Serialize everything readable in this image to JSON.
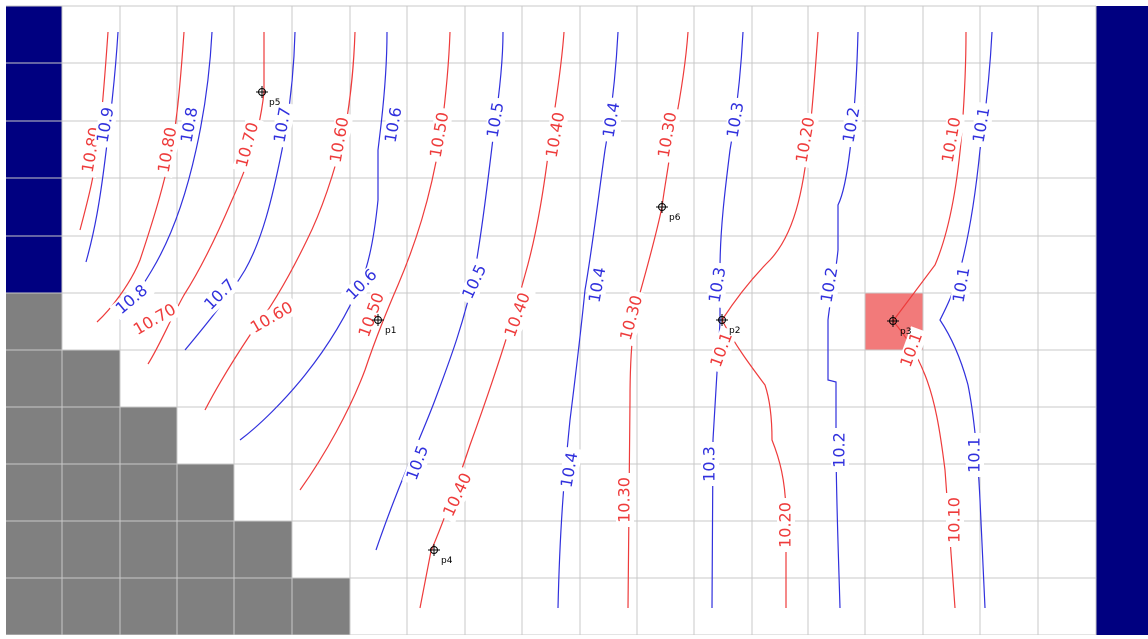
{
  "colors": {
    "navy": "#000080",
    "gray": "#808080",
    "grid": "#c8c8c8",
    "red": "#ee3b3b",
    "blue": "#3030dd",
    "highlight": "#f27a7a"
  },
  "red_labels": [
    "10.80",
    "10.80",
    "10.70",
    "10.60",
    "10.50",
    "10.40",
    "10.30",
    "10.20",
    "10.10",
    "10.70",
    "10.60",
    "10.50",
    "10.40",
    "10.30",
    "10.40",
    "10.30",
    "10.20",
    "10.10",
    "10.1",
    "10.1"
  ],
  "blue_labels": [
    "10.9",
    "10.8",
    "10.7",
    "10.6",
    "10.5",
    "10.4",
    "10.3",
    "10.2",
    "10.1",
    "10.8",
    "10.7",
    "10.6",
    "10.5",
    "10.4",
    "10.3",
    "10.2",
    "10.1",
    "10.5",
    "10.4",
    "10.3",
    "10.2",
    "10.1"
  ],
  "points": [
    {
      "label": "p1"
    },
    {
      "label": "p2"
    },
    {
      "label": "p3"
    },
    {
      "label": "p4"
    },
    {
      "label": "p5"
    },
    {
      "label": "p6"
    }
  ]
}
